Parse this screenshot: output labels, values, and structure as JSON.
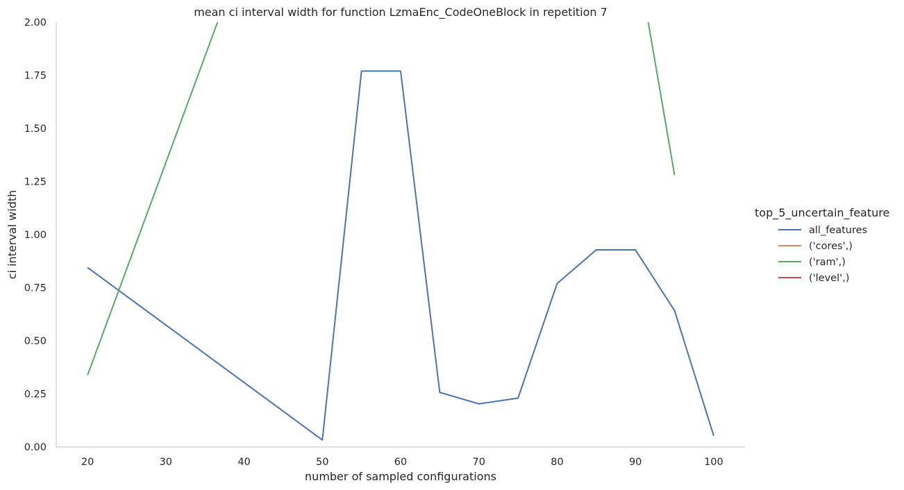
{
  "chart_data": {
    "type": "line",
    "title": "mean ci interval width for function LzmaEnc_CodeOneBlock in repetition 7",
    "xlabel": "number of sampled configurations",
    "ylabel": "ci interval width",
    "xlim": [
      16,
      104
    ],
    "ylim": [
      0,
      2.0
    ],
    "x_ticks": [
      20,
      30,
      40,
      50,
      60,
      70,
      80,
      90,
      100
    ],
    "y_ticks": [
      0.0,
      0.25,
      0.5,
      0.75,
      1.0,
      1.25,
      1.5,
      1.75,
      2.0
    ],
    "y_tick_labels": [
      "0.00",
      "0.25",
      "0.50",
      "0.75",
      "1.00",
      "1.25",
      "1.50",
      "1.75",
      "2.00"
    ],
    "grid": false,
    "legend": {
      "title": "top_5_uncertain_feature",
      "placement": "right",
      "entries": [
        "all_features",
        "('cores',)",
        "('ram',)",
        "('level',)"
      ]
    },
    "series": [
      {
        "name": "all_features",
        "color": "#4c72b0",
        "x": [
          20,
          50,
          55,
          60,
          65,
          70,
          75,
          80,
          85,
          90,
          95,
          100
        ],
        "y": [
          0.845,
          0.033,
          1.77,
          1.77,
          0.257,
          0.203,
          0.23,
          0.77,
          0.928,
          0.928,
          0.642,
          0.053
        ]
      },
      {
        "name": "('cores',)",
        "color": "#dd8452",
        "x": [],
        "y": []
      },
      {
        "name": "('ram',)",
        "color": "#55a868",
        "segments": [
          {
            "x": [
              20,
              45
            ],
            "y": [
              0.338,
              2.84
            ]
          },
          {
            "x": [
              90,
              95
            ],
            "y": [
              2.35,
              1.28
            ]
          }
        ]
      },
      {
        "name": "('level',)",
        "color": "#c44e52",
        "x": [],
        "y": []
      }
    ]
  }
}
